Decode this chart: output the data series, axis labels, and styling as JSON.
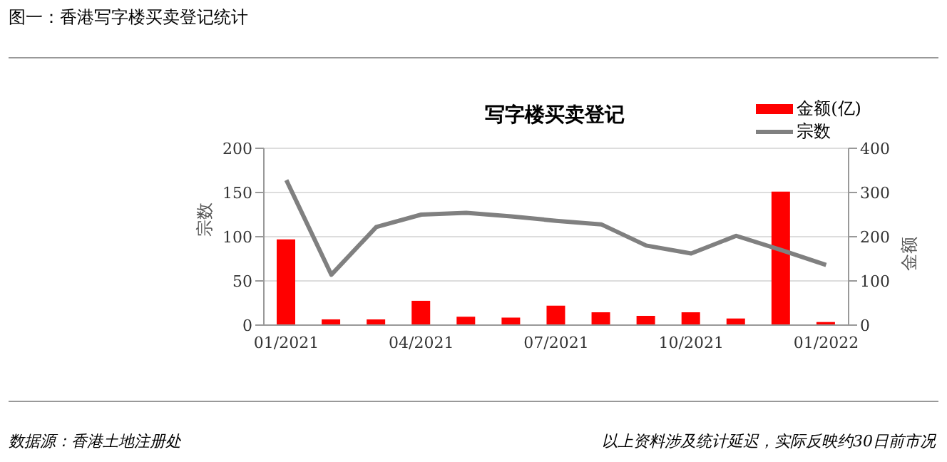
{
  "chart_data": {
    "type": "bar",
    "title": "图一：香港写字楼买卖登记统计",
    "subtitle": "写字楼买卖登记",
    "categories": [
      "01/2021",
      null,
      null,
      "04/2021",
      null,
      null,
      "07/2021",
      null,
      null,
      "10/2021",
      null,
      null,
      "01/2022"
    ],
    "series": [
      {
        "name": "金额(亿)",
        "axis": "y2",
        "color": "#ff0000",
        "values": [
          194,
          13,
          13,
          55,
          19,
          17,
          44,
          29,
          21,
          29,
          15,
          302,
          7
        ]
      },
      {
        "name": "宗数",
        "type": "line",
        "color": "#808080",
        "values": [
          164,
          57,
          111,
          125,
          127,
          123,
          118,
          114,
          90,
          81,
          101,
          85,
          68
        ]
      }
    ],
    "ylabel": "宗数",
    "y2label": "金额",
    "ylim": [
      0,
      200
    ],
    "yticks": [
      0,
      50,
      100,
      150,
      200
    ],
    "y2lim": [
      0,
      400
    ],
    "y2ticks": [
      0,
      100,
      200,
      300,
      400
    ],
    "grid": "y",
    "legend": "top right",
    "marker": "none",
    "annotations": [
      "数据源：香港土地注册处",
      "以上资料涉及统计延迟，实际反映约30日前市况"
    ]
  }
}
